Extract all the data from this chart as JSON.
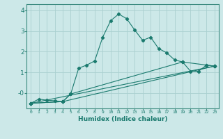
{
  "xlabel": "Humidex (Indice chaleur)",
  "bg_color": "#cce8e8",
  "grid_color": "#aad0d0",
  "line_color": "#1a7a6e",
  "spine_color": "#3a8a7e",
  "xlim": [
    -0.5,
    23.5
  ],
  "ylim": [
    -0.75,
    4.3
  ],
  "yticks": [
    0,
    1,
    2,
    3,
    4
  ],
  "ytick_labels": [
    "-0",
    "1",
    "2",
    "3",
    "4"
  ],
  "xticks": [
    0,
    1,
    2,
    3,
    4,
    5,
    6,
    7,
    8,
    9,
    10,
    11,
    12,
    13,
    14,
    15,
    16,
    17,
    18,
    19,
    20,
    21,
    22,
    23
  ],
  "line1_x": [
    0,
    1,
    2,
    3,
    4,
    5,
    6,
    7,
    8,
    9,
    10,
    11,
    12,
    13,
    14,
    15,
    16,
    17,
    18,
    19,
    20,
    21,
    22,
    23
  ],
  "line1_y": [
    -0.5,
    -0.3,
    -0.35,
    -0.38,
    -0.42,
    -0.05,
    1.2,
    1.35,
    1.55,
    2.7,
    3.5,
    3.82,
    3.6,
    3.05,
    2.55,
    2.7,
    2.15,
    1.95,
    1.6,
    1.5,
    1.05,
    1.05,
    1.35,
    1.3
  ],
  "line2_x": [
    0,
    4,
    5,
    19,
    22,
    23
  ],
  "line2_y": [
    -0.5,
    -0.42,
    -0.05,
    1.5,
    1.35,
    1.3
  ],
  "line3_x": [
    0,
    4,
    23
  ],
  "line3_y": [
    -0.5,
    -0.42,
    1.3
  ],
  "line4_x": [
    0,
    23
  ],
  "line4_y": [
    -0.5,
    1.3
  ]
}
